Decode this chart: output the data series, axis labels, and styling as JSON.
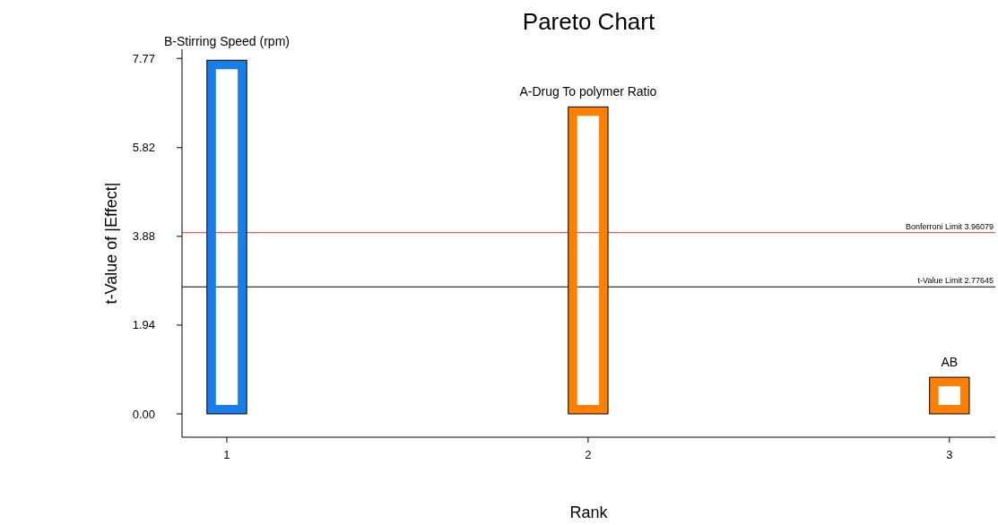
{
  "chart_data": {
    "type": "bar",
    "title": "Pareto Chart",
    "xlabel": "Rank",
    "ylabel": "t-Value of |Effect|",
    "x": [
      1,
      2,
      3
    ],
    "values": [
      7.73,
      6.71,
      0.8
    ],
    "colors": [
      "#1a7ee8",
      "#ff8000",
      "#ff8000"
    ],
    "xlim": [
      0.876,
      3.127
    ],
    "xticks": [
      1,
      2,
      3
    ],
    "ylim": [
      -0.51,
      7.97
    ],
    "yticks": [
      {
        "value": 0,
        "label": "0.00"
      },
      1.94,
      3.88,
      5.82,
      7.77
    ],
    "annotations": [
      {
        "text": "B-Stirring Speed (rpm)",
        "x": 1,
        "y": 7.73
      },
      {
        "text": "A-Drug To polymer Ratio",
        "x": 2,
        "y": 6.71
      },
      {
        "text": "AB",
        "x": 3,
        "y": 0.8
      }
    ],
    "ref_lines": [
      {
        "axis": "y",
        "value": 3.96079,
        "label": "Bonferroni Limit 3.96079",
        "color": "#e03030"
      },
      {
        "axis": "y",
        "value": 2.77645,
        "label": "t-Value Limit 2.77645",
        "color": "#000000"
      }
    ],
    "grid": false
  }
}
